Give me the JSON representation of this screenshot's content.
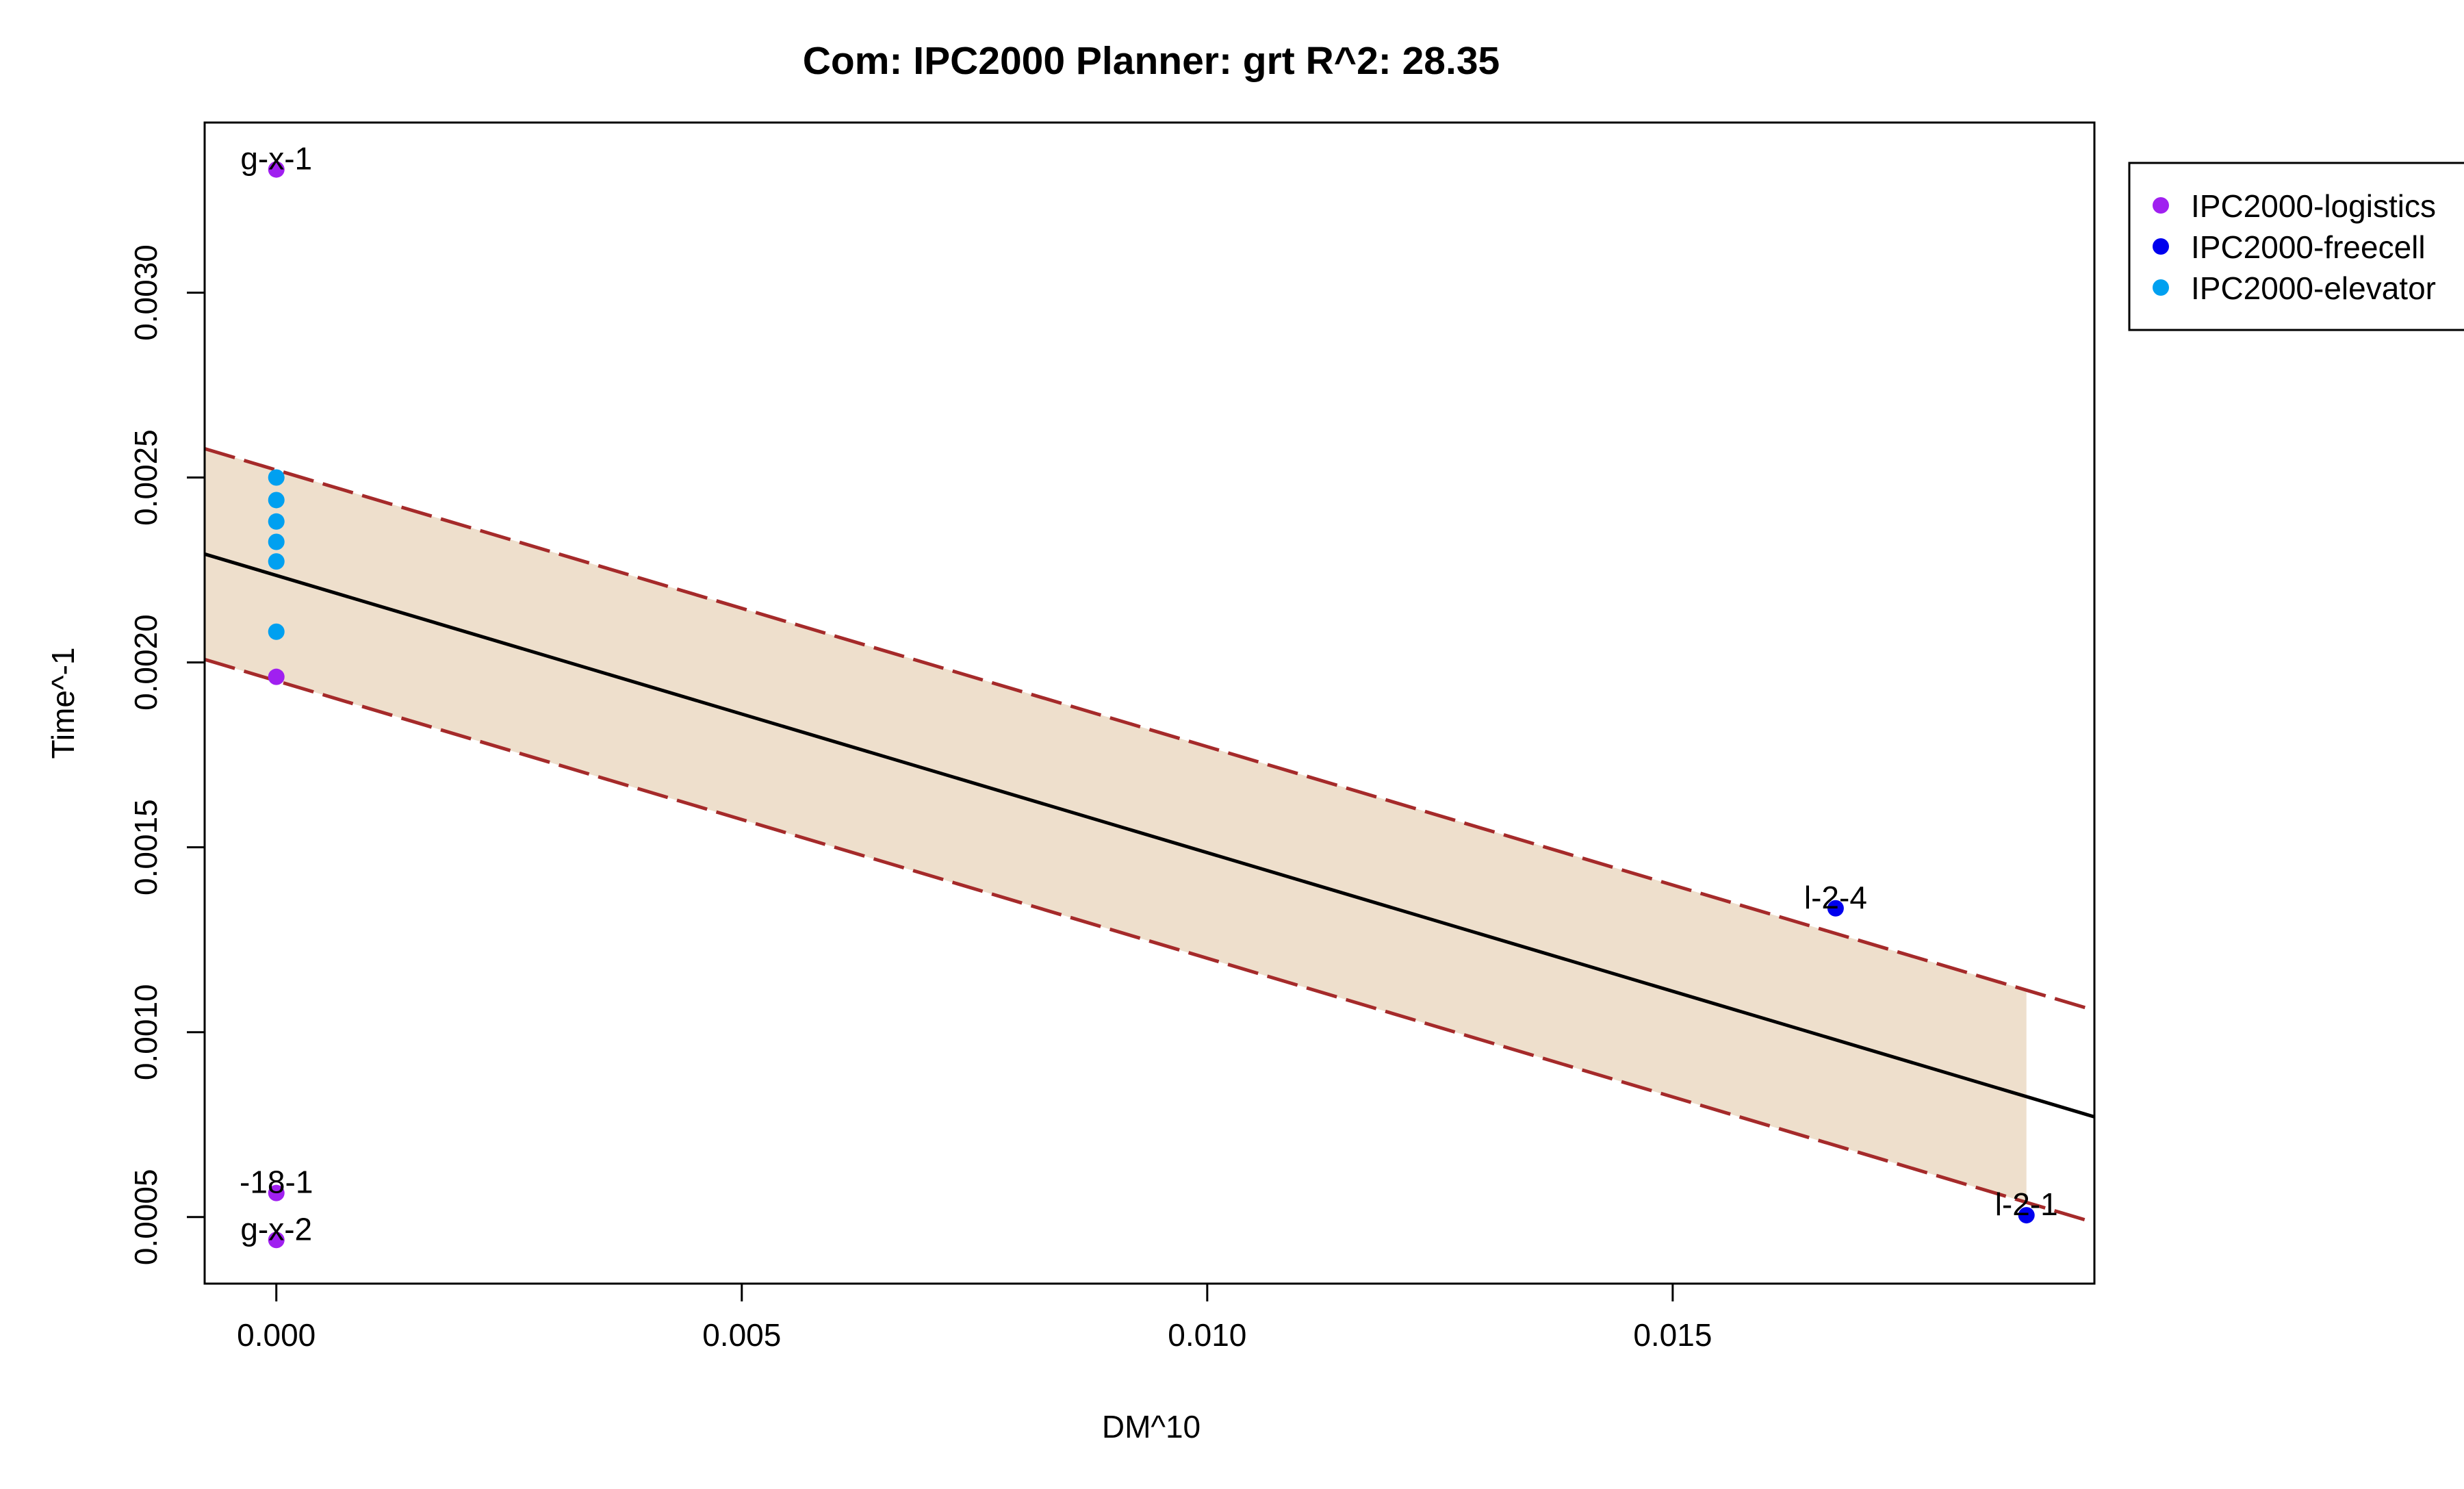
{
  "chart_data": {
    "type": "scatter",
    "title": "Com: IPC2000 Planner: grt R^2: 28.35",
    "xlabel": "DM^10",
    "ylabel": "Time^-1",
    "xlim": [
      -0.00077,
      0.01953
    ],
    "ylim": [
      0.00032,
      0.00346
    ],
    "x_ticks": [
      "0.000",
      "0.005",
      "0.010",
      "0.015"
    ],
    "x_tick_values": [
      0,
      0.005,
      0.01,
      0.015
    ],
    "y_ticks": [
      "0.0005",
      "0.0010",
      "0.0015",
      "0.0020",
      "0.0025",
      "0.0030"
    ],
    "y_tick_values": [
      0.0005,
      0.001,
      0.0015,
      0.002,
      0.0025,
      0.003
    ],
    "grid": false,
    "legend_position": "right (outside plot, top)",
    "series": [
      {
        "name": "IPC2000-logistics",
        "color": "#a020f0",
        "points": [
          {
            "x": 0,
            "y": 0.003333,
            "label": "g-x-1"
          },
          {
            "x": 0,
            "y": 0.001961,
            "label": ""
          },
          {
            "x": 0,
            "y": 0.000565,
            "label": "-18-1"
          },
          {
            "x": 0,
            "y": 0.000438,
            "label": "g-x-2"
          }
        ]
      },
      {
        "name": "IPC2000-freecell",
        "color": "#0000ee",
        "points": [
          {
            "x": 0.01675,
            "y": 0.001335,
            "label": "l-2-4"
          },
          {
            "x": 0.0188,
            "y": 0.000505,
            "label": "l-2-1"
          }
        ]
      },
      {
        "name": "IPC2000-elevator",
        "color": "#00a0f0",
        "points": [
          {
            "x": 0,
            "y": 0.0025,
            "label": ""
          },
          {
            "x": 0,
            "y": 0.002439,
            "label": ""
          },
          {
            "x": 0,
            "y": 0.002381,
            "label": ""
          },
          {
            "x": 0,
            "y": 0.002326,
            "label": ""
          },
          {
            "x": 0,
            "y": 0.002273,
            "label": ""
          },
          {
            "x": 0,
            "y": 0.002083,
            "label": ""
          }
        ]
      }
    ],
    "regression": {
      "color": "#000000",
      "line": [
        [
          -0.00077,
          0.002293
        ],
        [
          0.01953,
          0.000771
        ]
      ]
    },
    "band": {
      "color": "#a52a2a",
      "fill": "#eedfcc",
      "fill_x_range": [
        -0.00077,
        0.0188
      ],
      "upper": [
        [
          -0.00077,
          0.002578
        ],
        [
          0.01953,
          0.001059
        ]
      ],
      "lower": [
        [
          -0.00077,
          0.002008
        ],
        [
          0.01953,
          0.000485
        ]
      ]
    }
  }
}
